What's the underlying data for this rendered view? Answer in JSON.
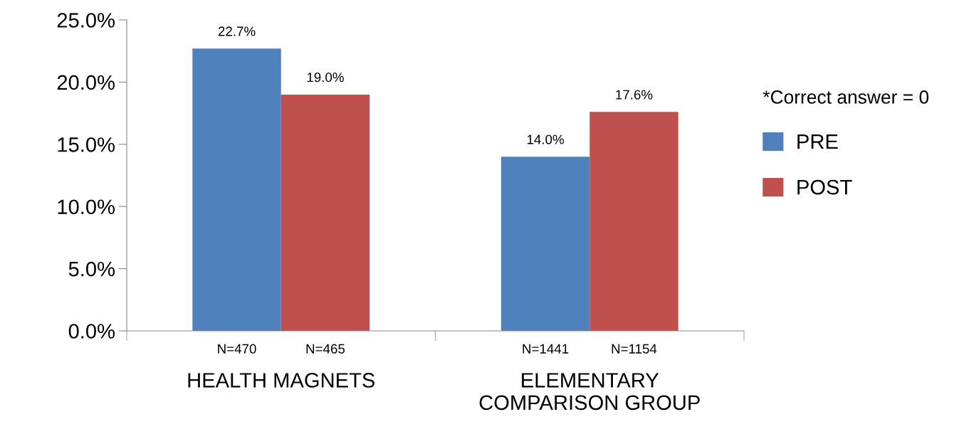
{
  "chart_data": {
    "type": "bar",
    "categories": [
      "HEALTH MAGNETS",
      "ELEMENTARY\nCOMPARISON GROUP"
    ],
    "series": [
      {
        "name": "PRE",
        "color": "#4f81bd",
        "values": [
          22.7,
          14.0
        ],
        "value_labels": [
          "22.7%",
          "14.0%"
        ]
      },
      {
        "name": "POST",
        "color": "#c0504d",
        "values": [
          19.0,
          17.6
        ],
        "value_labels": [
          "19.0%",
          "17.6%"
        ]
      }
    ],
    "ylim": [
      0,
      25
    ],
    "yticks": [
      {
        "value": 0,
        "label": "0.0%"
      },
      {
        "value": 5,
        "label": "5.0%"
      },
      {
        "value": 10,
        "label": "10.0%"
      },
      {
        "value": 15,
        "label": "15.0%"
      },
      {
        "value": 20,
        "label": "20.0%"
      },
      {
        "value": 25,
        "label": "25.0%"
      }
    ],
    "legend_title": "*Correct answer = 0",
    "legend": "right",
    "grid": false,
    "annotations": [
      "N=470",
      "N=465",
      "N=1441",
      "N=1154"
    ]
  }
}
